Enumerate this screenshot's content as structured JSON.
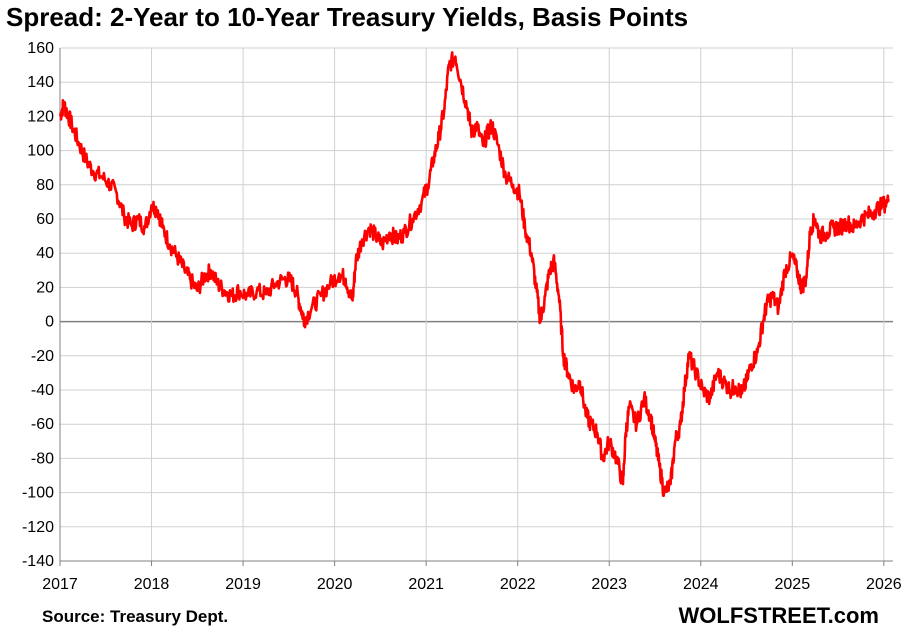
{
  "chart_data": {
    "type": "line",
    "title": "Spread: 2-Year to 10-Year Treasury Yields, Basis Points",
    "xlabel": "",
    "ylabel": "",
    "ylim": [
      -140,
      160
    ],
    "yticks": [
      160,
      140,
      120,
      100,
      80,
      60,
      40,
      20,
      0,
      -20,
      -40,
      -60,
      -80,
      -100,
      -120,
      -140
    ],
    "xlim": [
      2017,
      2026.1
    ],
    "xticks": [
      "2017",
      "2018",
      "2019",
      "2020",
      "2021",
      "2022",
      "2023",
      "2024",
      "2025",
      "2026"
    ],
    "grid": true,
    "legend": "none",
    "line_color": "#ff0000",
    "series": [
      {
        "x": [
          2017.0,
          2017.04,
          2017.08,
          2017.13,
          2017.2,
          2017.28,
          2017.36,
          2017.45,
          2017.55,
          2017.62,
          2017.7,
          2017.78,
          2017.85,
          2017.93,
          2018.0,
          2018.07,
          2018.12,
          2018.2,
          2018.28,
          2018.36,
          2018.42,
          2018.5,
          2018.57,
          2018.65,
          2018.72,
          2018.8,
          2018.88,
          2018.95,
          2019.05,
          2019.15,
          2019.25,
          2019.35,
          2019.45,
          2019.52,
          2019.58,
          2019.63,
          2019.67,
          2019.75,
          2019.85,
          2019.95,
          2020.05,
          2020.12,
          2020.18,
          2020.2,
          2020.23,
          2020.3,
          2020.38,
          2020.45,
          2020.52,
          2020.6,
          2020.68,
          2020.76,
          2020.85,
          2020.95,
          2021.02,
          2021.08,
          2021.14,
          2021.2,
          2021.25,
          2021.32,
          2021.38,
          2021.45,
          2021.5,
          2021.55,
          2021.62,
          2021.67,
          2021.72,
          2021.8,
          2021.87,
          2021.95,
          2022.02,
          2022.08,
          2022.15,
          2022.2,
          2022.25,
          2022.3,
          2022.35,
          2022.4,
          2022.45,
          2022.5,
          2022.55,
          2022.62,
          2022.68,
          2022.75,
          2022.8,
          2022.87,
          2022.93,
          2023.0,
          2023.08,
          2023.15,
          2023.18,
          2023.22,
          2023.3,
          2023.38,
          2023.45,
          2023.5,
          2023.55,
          2023.6,
          2023.67,
          2023.72,
          2023.78,
          2023.82,
          2023.87,
          2023.95,
          2024.02,
          2024.1,
          2024.18,
          2024.25,
          2024.32,
          2024.38,
          2024.45,
          2024.5,
          2024.55,
          2024.62,
          2024.68,
          2024.72,
          2024.78,
          2024.85,
          2024.92,
          2025.0,
          2025.05,
          2025.1,
          2025.15,
          2025.2,
          2025.25,
          2025.3,
          2025.38,
          2025.45,
          2025.52,
          2025.6,
          2025.68,
          2025.75,
          2025.82,
          2025.9,
          2025.98,
          2026.05
        ],
        "values": [
          120,
          127,
          122,
          115,
          105,
          95,
          88,
          85,
          80,
          75,
          62,
          56,
          60,
          55,
          68,
          65,
          55,
          45,
          38,
          30,
          25,
          18,
          26,
          30,
          22,
          18,
          15,
          18,
          15,
          18,
          16,
          22,
          25,
          24,
          18,
          8,
          1,
          8,
          15,
          22,
          28,
          25,
          14,
          15,
          35,
          48,
          55,
          50,
          45,
          52,
          48,
          52,
          60,
          70,
          80,
          95,
          108,
          125,
          150,
          155,
          140,
          125,
          110,
          115,
          103,
          110,
          115,
          100,
          85,
          80,
          75,
          55,
          40,
          20,
          0,
          15,
          30,
          35,
          15,
          -20,
          -30,
          -40,
          -35,
          -55,
          -60,
          -65,
          -80,
          -70,
          -80,
          -95,
          -65,
          -50,
          -60,
          -45,
          -55,
          -70,
          -85,
          -100,
          -95,
          -70,
          -60,
          -40,
          -20,
          -30,
          -40,
          -45,
          -30,
          -35,
          -40,
          -38,
          -42,
          -35,
          -25,
          -18,
          0,
          10,
          15,
          8,
          30,
          38,
          30,
          20,
          25,
          55,
          60,
          50,
          52,
          55,
          55,
          58,
          55,
          60,
          62,
          65,
          68,
          70
        ]
      }
    ]
  },
  "footer": {
    "source": "Source: Treasury Dept.",
    "brand": "WOLFSTREET.com"
  }
}
